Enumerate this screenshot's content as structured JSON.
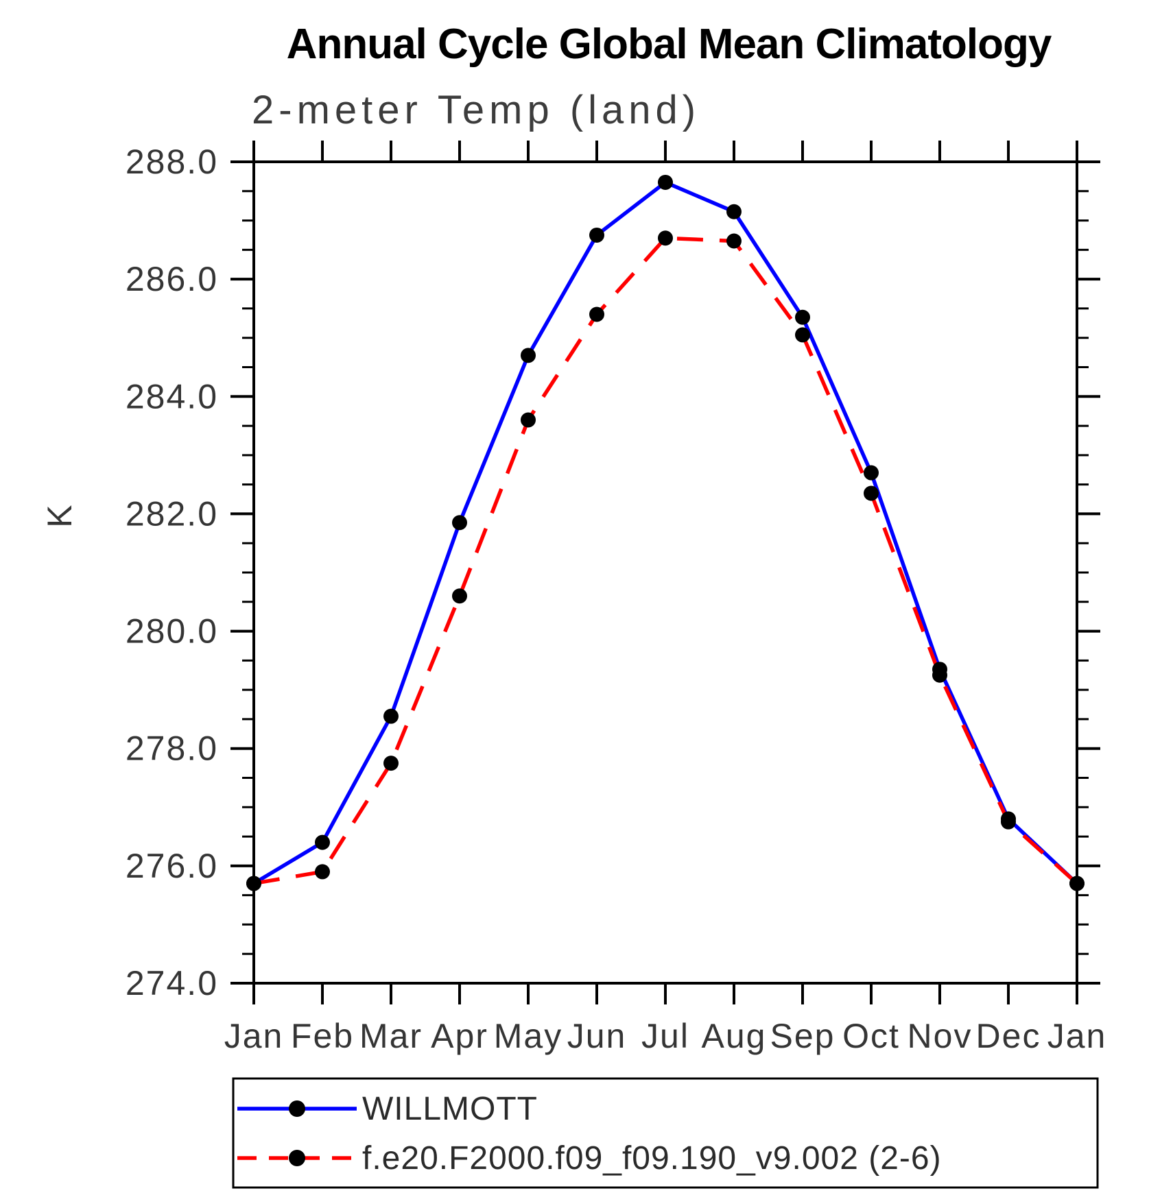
{
  "page": {
    "background": "#ffffff"
  },
  "chart_data": {
    "type": "line",
    "title": "Annual Cycle Global Mean Climatology",
    "subtitle": "2-meter Temp (land)",
    "ylabel": "K",
    "xlabel": "",
    "ylim": [
      274.0,
      288.0
    ],
    "ytick_major_step": 2.0,
    "ytick_minor_step": 0.5,
    "ytick_labels": [
      "288.0",
      "286.0",
      "284.0",
      "282.0",
      "280.0",
      "278.0",
      "276.0",
      "274.0"
    ],
    "categories": [
      "Jan",
      "Feb",
      "Mar",
      "Apr",
      "May",
      "Jun",
      "Jul",
      "Aug",
      "Sep",
      "Oct",
      "Nov",
      "Dec",
      "Jan"
    ],
    "grid": false,
    "legend_position": "bottom",
    "frame_color": "#000000",
    "marker_color": "#000000",
    "series": [
      {
        "name": "WILLMOTT",
        "color": "#0000ff",
        "line_style": "solid",
        "marker": "circle",
        "values": [
          275.7,
          276.4,
          278.55,
          281.85,
          284.7,
          286.75,
          287.65,
          287.15,
          285.35,
          282.7,
          279.35,
          276.8,
          275.7
        ]
      },
      {
        "name": "f.e20.F2000.f09_f09.190_v9.002 (2-6)",
        "color": "#ff0000",
        "line_style": "dashed",
        "marker": "circle",
        "values": [
          275.7,
          275.9,
          277.75,
          280.6,
          283.6,
          285.4,
          286.7,
          286.65,
          285.05,
          282.35,
          279.25,
          276.75,
          275.7
        ]
      }
    ]
  }
}
